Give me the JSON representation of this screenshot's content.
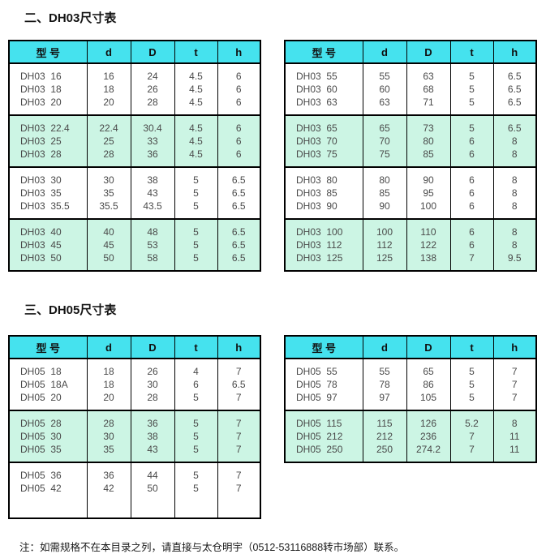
{
  "sections": [
    {
      "title": "二、DH03尺寸表"
    },
    {
      "title": "三、DH05尺寸表"
    }
  ],
  "note": "注：如需规格不在本目录之列，请直接与太仓明宇（0512-53116888转市场部）联系。",
  "colors": {
    "header_bg": "#45e2ee",
    "band_bg": "#ccf5e4",
    "border": "#000000",
    "body_text": "#4a4a4a"
  },
  "columns": [
    "型 号",
    "d",
    "D",
    "t",
    "h"
  ],
  "tables": [
    {
      "name": "dh03-left",
      "groups": [
        {
          "shaded": false,
          "rows": [
            [
              "DH03  16",
              "16",
              "24",
              "4.5",
              "6"
            ],
            [
              "DH03  18",
              "18",
              "26",
              "4.5",
              "6"
            ],
            [
              "DH03  20",
              "20",
              "28",
              "4.5",
              "6"
            ]
          ]
        },
        {
          "shaded": true,
          "rows": [
            [
              "DH03  22.4",
              "22.4",
              "30.4",
              "4.5",
              "6"
            ],
            [
              "DH03  25",
              "25",
              "33",
              "4.5",
              "6"
            ],
            [
              "DH03  28",
              "28",
              "36",
              "4.5",
              "6"
            ]
          ]
        },
        {
          "shaded": false,
          "rows": [
            [
              "DH03  30",
              "30",
              "38",
              "5",
              "6.5"
            ],
            [
              "DH03  35",
              "35",
              "43",
              "5",
              "6.5"
            ],
            [
              "DH03  35.5",
              "35.5",
              "43.5",
              "5",
              "6.5"
            ]
          ]
        },
        {
          "shaded": true,
          "rows": [
            [
              "DH03  40",
              "40",
              "48",
              "5",
              "6.5"
            ],
            [
              "DH03  45",
              "45",
              "53",
              "5",
              "6.5"
            ],
            [
              "DH03  50",
              "50",
              "58",
              "5",
              "6.5"
            ]
          ]
        }
      ]
    },
    {
      "name": "dh03-right",
      "groups": [
        {
          "shaded": false,
          "rows": [
            [
              "DH03  55",
              "55",
              "63",
              "5",
              "6.5"
            ],
            [
              "DH03  60",
              "60",
              "68",
              "5",
              "6.5"
            ],
            [
              "DH03  63",
              "63",
              "71",
              "5",
              "6.5"
            ]
          ]
        },
        {
          "shaded": true,
          "rows": [
            [
              "DH03  65",
              "65",
              "73",
              "5",
              "6.5"
            ],
            [
              "DH03  70",
              "70",
              "80",
              "6",
              "8"
            ],
            [
              "DH03  75",
              "75",
              "85",
              "6",
              "8"
            ]
          ]
        },
        {
          "shaded": false,
          "rows": [
            [
              "DH03  80",
              "80",
              "90",
              "6",
              "8"
            ],
            [
              "DH03  85",
              "85",
              "95",
              "6",
              "8"
            ],
            [
              "DH03  90",
              "90",
              "100",
              "6",
              "8"
            ]
          ]
        },
        {
          "shaded": true,
          "rows": [
            [
              "DH03  100",
              "100",
              "110",
              "6",
              "8"
            ],
            [
              "DH03  112",
              "112",
              "122",
              "6",
              "8"
            ],
            [
              "DH03  125",
              "125",
              "138",
              "7",
              "9.5"
            ]
          ]
        }
      ]
    },
    {
      "name": "dh05-left",
      "groups": [
        {
          "shaded": false,
          "rows": [
            [
              "DH05  18",
              "18",
              "26",
              "4",
              "7"
            ],
            [
              "DH05  18A",
              "18",
              "30",
              "6",
              "6.5"
            ],
            [
              "DH05  20",
              "20",
              "28",
              "5",
              "7"
            ]
          ]
        },
        {
          "shaded": true,
          "rows": [
            [
              "DH05  28",
              "28",
              "36",
              "5",
              "7"
            ],
            [
              "DH05  30",
              "30",
              "38",
              "5",
              "7"
            ],
            [
              "DH05  35",
              "35",
              "43",
              "5",
              "7"
            ]
          ]
        },
        {
          "shaded": false,
          "tall": true,
          "rows": [
            [
              "DH05  36",
              "36",
              "44",
              "5",
              "7"
            ],
            [
              "DH05  42",
              "42",
              "50",
              "5",
              "7"
            ]
          ]
        }
      ]
    },
    {
      "name": "dh05-right",
      "groups": [
        {
          "shaded": false,
          "rows": [
            [
              "DH05  55",
              "55",
              "65",
              "5",
              "7"
            ],
            [
              "DH05  78",
              "78",
              "86",
              "5",
              "7"
            ],
            [
              "DH05  97",
              "97",
              "105",
              "5",
              "7"
            ]
          ]
        },
        {
          "shaded": true,
          "rows": [
            [
              "DH05  115",
              "115",
              "126",
              "5.2",
              "8"
            ],
            [
              "DH05  212",
              "212",
              "236",
              "7",
              "11"
            ],
            [
              "DH05  250",
              "250",
              "274.2",
              "7",
              "11"
            ]
          ]
        }
      ]
    }
  ]
}
